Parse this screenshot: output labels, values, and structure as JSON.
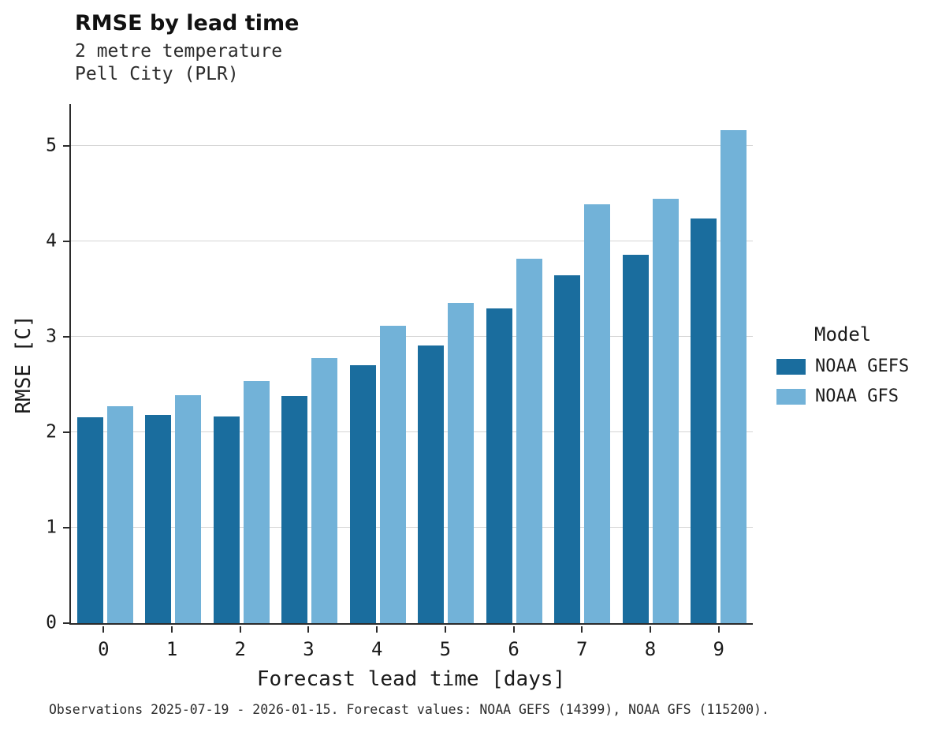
{
  "chart_data": {
    "type": "bar",
    "title": "RMSE by lead time",
    "subtitle": [
      "2 metre temperature",
      "Pell City (PLR)"
    ],
    "xlabel": "Forecast lead time [days]",
    "ylabel": "RMSE [C]",
    "categories": [
      "0",
      "1",
      "2",
      "3",
      "4",
      "5",
      "6",
      "7",
      "8",
      "9"
    ],
    "series": [
      {
        "name": "NOAA GEFS",
        "color": "#1a6d9e",
        "values": [
          2.16,
          2.18,
          2.17,
          2.38,
          2.7,
          2.91,
          3.3,
          3.65,
          3.86,
          4.24
        ]
      },
      {
        "name": "NOAA GFS",
        "color": "#72b2d8",
        "values": [
          2.27,
          2.39,
          2.54,
          2.78,
          3.12,
          3.36,
          3.82,
          4.39,
          4.45,
          5.17
        ]
      }
    ],
    "ylim": [
      0,
      5.44
    ],
    "yticks": [
      0,
      1,
      2,
      3,
      4,
      5
    ],
    "grid": true,
    "legend_title": "Model",
    "legend_position": "right"
  },
  "footer": {
    "text": "Observations 2025-07-19 - 2026-01-15. Forecast values: NOAA GEFS (14399), NOAA GFS (115200)."
  }
}
